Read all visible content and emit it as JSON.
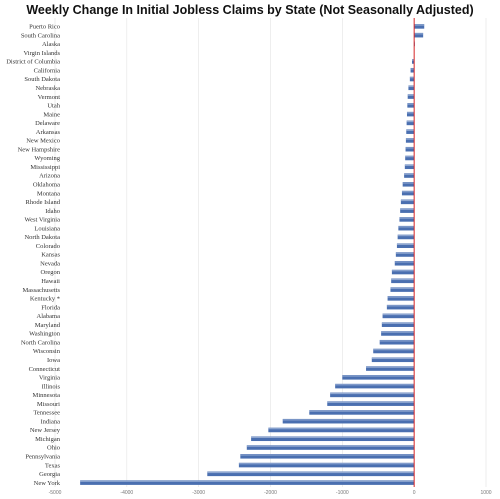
{
  "chart_data": {
    "type": "bar",
    "orientation": "horizontal",
    "title": "Weekly Change In Initial Jobless Claims by State (Not Seasonally Adjusted)",
    "xlabel": "",
    "ylabel": "",
    "xlim": [
      -5000,
      1000
    ],
    "xticks": [
      {
        "value": -5000,
        "label": "-5000"
      },
      {
        "value": -4000,
        "label": "-4000"
      },
      {
        "value": -3000,
        "label": "-3000"
      },
      {
        "value": -2000,
        "label": "-2000"
      },
      {
        "value": -1000,
        "label": "-1000"
      },
      {
        "value": 0,
        "label": "0"
      },
      {
        "value": 1000,
        "label": "1000"
      }
    ],
    "grid": true,
    "legend": "none",
    "bar_color": "#4a6fb0",
    "zero_line_color": "#d62728",
    "categories": [
      "Puerto Rico",
      "South Carolina",
      "Alaska",
      "Virgin Islands",
      "District of Columbia",
      "California",
      "South Dakota",
      "Nebraska",
      "Vermont",
      "Utah",
      "Maine",
      "Delaware",
      "Arkansas",
      "New Mexico",
      "New Hampshire",
      "Wyoming",
      "Mississippi",
      "Arizona",
      "Oklahoma",
      "Montana",
      "Rhode Island",
      "Idaho",
      "West Virginia",
      "Louisiana",
      "North Dakota",
      "Colorado",
      "Kansas",
      "Nevada",
      "Oregon",
      "Hawaii",
      "Massachusetts",
      "Kentucky *",
      "Florida",
      "Alabama",
      "Maryland",
      "Washington",
      "North Carolina",
      "Wisconsin",
      "Iowa",
      "Connecticut",
      "Virginia",
      "Illinois",
      "Minnesota",
      "Missouri",
      "Tennessee",
      "Indiana",
      "New Jersey",
      "Michigan",
      "Ohio",
      "Pennsylvania",
      "Texas",
      "Georgia",
      "New York"
    ],
    "values": [
      140,
      125,
      10,
      0,
      -30,
      -50,
      -60,
      -80,
      -90,
      -95,
      -100,
      -105,
      -110,
      -115,
      -120,
      -125,
      -130,
      -140,
      -160,
      -170,
      -185,
      -195,
      -205,
      -220,
      -230,
      -240,
      -255,
      -270,
      -310,
      -320,
      -330,
      -370,
      -380,
      -440,
      -450,
      -460,
      -480,
      -570,
      -590,
      -670,
      -1000,
      -1100,
      -1170,
      -1210,
      -1460,
      -1830,
      -2030,
      -2270,
      -2330,
      -2420,
      -2440,
      -2880,
      -4650
    ]
  }
}
